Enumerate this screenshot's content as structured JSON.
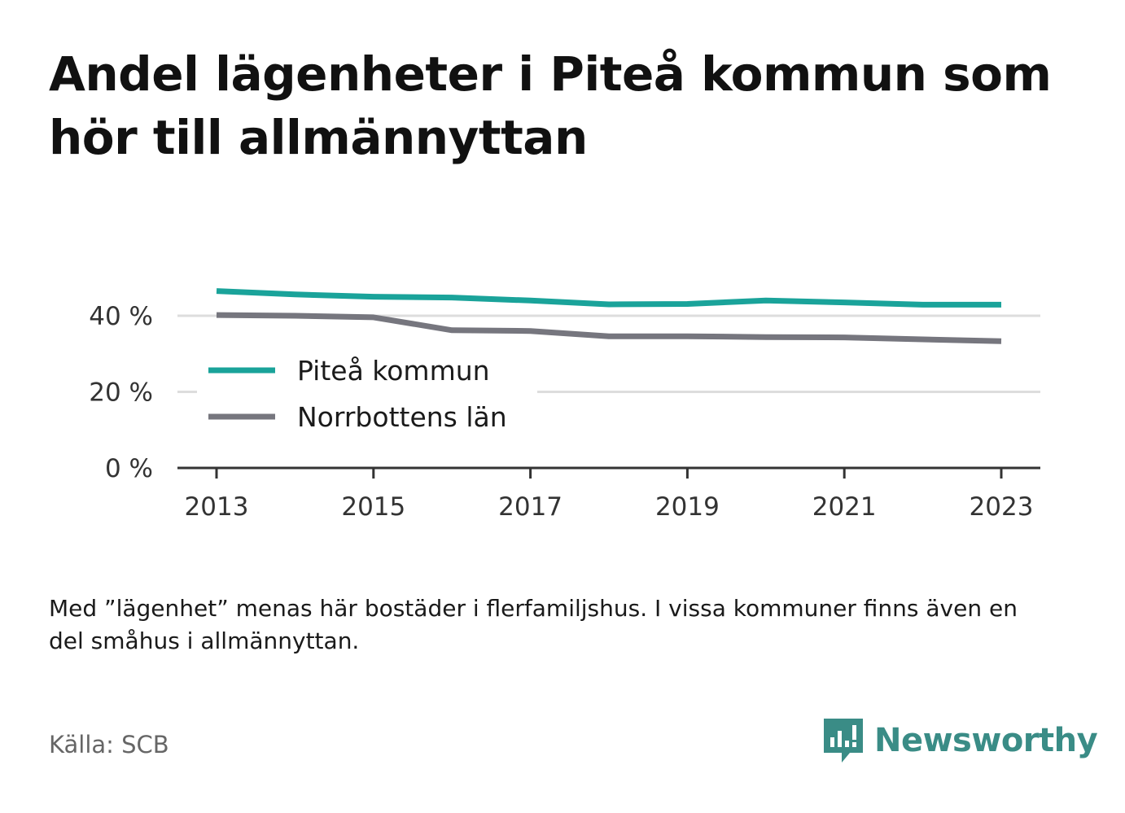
{
  "title": "Andel lägenheter i Piteå kommun som hör till allmännyttan",
  "note": "Med ”lägenhet” menas här bostäder i flerfamiljshus. I vissa kommuner finns även en del småhus i allmännyttan.",
  "source": "Källa: SCB",
  "brand": {
    "name": "Newsworthy"
  },
  "colors": {
    "pitea": "#1aa39a",
    "norrbotten": "#76767e",
    "grid": "#dddddd",
    "axis": "#333333",
    "brand": "#3a8c86"
  },
  "chart_data": {
    "type": "line",
    "x": [
      2013,
      2014,
      2015,
      2016,
      2017,
      2018,
      2019,
      2020,
      2021,
      2022,
      2023
    ],
    "series": [
      {
        "name": "Piteå kommun",
        "values": [
          46.5,
          45.6,
          45.0,
          44.8,
          44.0,
          43.0,
          43.1,
          44.0,
          43.5,
          42.9,
          42.9
        ]
      },
      {
        "name": "Norrbottens län",
        "values": [
          40.2,
          40.0,
          39.6,
          36.2,
          36.0,
          34.6,
          34.6,
          34.4,
          34.3,
          33.8,
          33.3
        ]
      }
    ],
    "xticks": [
      2013,
      2015,
      2017,
      2019,
      2021,
      2023
    ],
    "xtick_labels": [
      "2013",
      "2015",
      "2017",
      "2019",
      "2021",
      "2023"
    ],
    "yticks": [
      0,
      20,
      40
    ],
    "ytick_labels": [
      "0 %",
      "20 %",
      "40 %"
    ],
    "ylim": [
      0,
      50
    ],
    "xlim": [
      2012.5,
      2023.5
    ],
    "grid": true,
    "legend_position": "center-left",
    "xlabel": "",
    "ylabel": ""
  }
}
